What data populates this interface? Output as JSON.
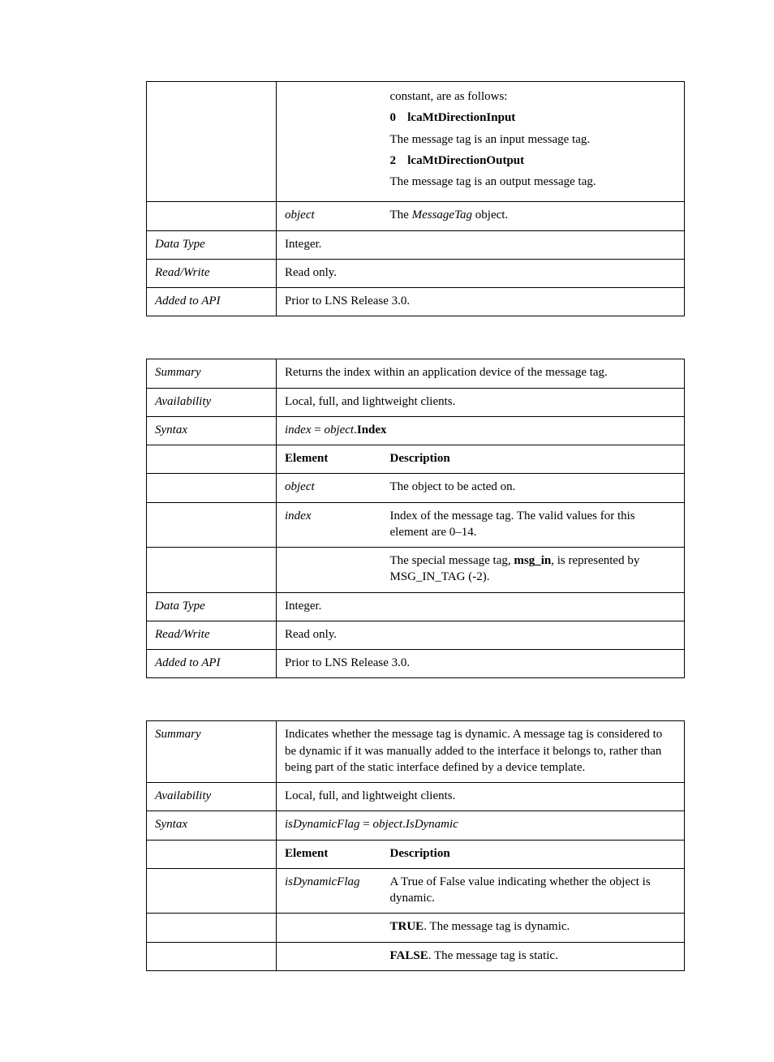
{
  "t1": {
    "desc_intro": "constant, are as follows:",
    "e0_num": "0",
    "e0_name": "lcaMtDirectionInput",
    "e0_desc": "The message tag is an input message tag.",
    "e2_num": "2",
    "e2_name": "lcaMtDirectionOutput",
    "e2_desc": "The message tag is an output message tag.",
    "object_elem": "object",
    "object_desc_pre": "The ",
    "object_desc_em": "MessageTag",
    "object_desc_post": " object.",
    "datatype_label": "Data Type",
    "datatype_val": "Integer.",
    "rw_label": "Read/Write",
    "rw_val": "Read only.",
    "api_label": "Added to API",
    "api_val": "Prior to LNS Release 3.0."
  },
  "t2": {
    "summary_label": "Summary",
    "summary_val": "Returns the index within an application device of the message tag.",
    "avail_label": "Availability",
    "avail_val": "Local, full, and lightweight clients.",
    "syntax_label": "Syntax",
    "syntax_lhs": "index",
    "syntax_eq": " = ",
    "syntax_obj": "object",
    "syntax_dot": ".",
    "syntax_prop": "Index",
    "hdr_elem": "Element",
    "hdr_desc": "Description",
    "r_object": "object",
    "r_object_d": "The object to be acted on.",
    "r_index": "index",
    "r_index_d": "Index of the message tag.  The valid values for this element are 0–14.",
    "r_note_pre": "The special message tag, ",
    "r_note_b": "msg_in",
    "r_note_post": ", is represented by MSG_IN_TAG (-2).",
    "datatype_label": "Data Type",
    "datatype_val": "Integer.",
    "rw_label": "Read/Write",
    "rw_val": "Read only.",
    "api_label": "Added to API",
    "api_val": "Prior to LNS Release 3.0."
  },
  "t3": {
    "summary_label": "Summary",
    "summary_val": "Indicates whether the message tag is dynamic.  A message tag is considered to be dynamic if it was manually added to the interface it belongs to, rather than being part of the static interface defined by a device template.",
    "avail_label": "Availability",
    "avail_val": "Local, full, and lightweight clients.",
    "syntax_label": "Syntax",
    "syntax_lhs": "isDynamicFlag",
    "syntax_eq": " = ",
    "syntax_obj": "object",
    "syntax_dot": ".",
    "syntax_prop": "IsDynamic",
    "hdr_elem": "Element",
    "hdr_desc": "Description",
    "r_flag": "isDynamicFlag",
    "r_flag_d": "A True of False value indicating whether the object is dynamic.",
    "true_b": "TRUE",
    "true_d": ".   The message tag is dynamic.",
    "false_b": "FALSE",
    "false_d": ".  The message tag is static."
  }
}
